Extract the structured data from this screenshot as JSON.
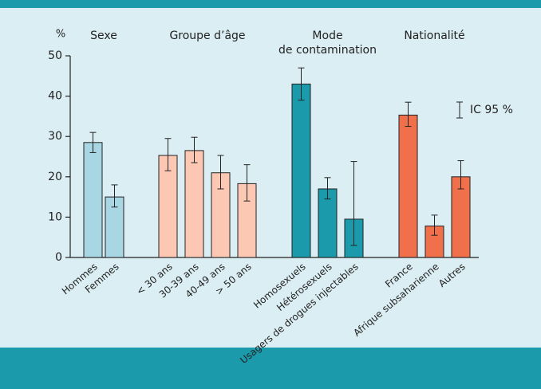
{
  "chart_data": {
    "type": "bar",
    "y_label": "%",
    "ylim": [
      0,
      50
    ],
    "yticks": [
      0,
      10,
      20,
      30,
      40,
      50
    ],
    "legend": "IC 95 %",
    "series": [
      {
        "name": [
          "Sexe"
        ],
        "color": "#a8d7e3",
        "label_color": "#1e9db3",
        "categories": [
          "Hommes",
          "Femmes"
        ],
        "values": [
          28.5,
          15
        ],
        "ci_low": [
          26,
          12.5
        ],
        "ci_high": [
          31,
          18
        ]
      },
      {
        "name": [
          "Groupe d’âge"
        ],
        "color": "#fcc8b3",
        "label_color": "#f0704c",
        "categories": [
          "< 30 ans",
          "30-39 ans",
          "40-49 ans",
          "> 50 ans"
        ],
        "values": [
          25.3,
          26.5,
          21,
          18.3
        ],
        "ci_low": [
          21.5,
          23.5,
          17,
          14
        ],
        "ci_high": [
          29.5,
          29.8,
          25.3,
          23
        ]
      },
      {
        "name": [
          "Mode",
          "de contamination"
        ],
        "color": "#1b9aab",
        "label_color": "#1e9db3",
        "categories": [
          "Homosexuels",
          "Hétérosexuels",
          "Usagers de drogues injectables"
        ],
        "values": [
          43,
          17,
          9.5
        ],
        "ci_low": [
          39,
          14.5,
          3
        ],
        "ci_high": [
          47,
          19.8,
          23.8
        ]
      },
      {
        "name": [
          "Nationalité"
        ],
        "color": "#f0704c",
        "label_color": "#f0704c",
        "categories": [
          "France",
          "Afrique subsaharienne",
          "Autres"
        ],
        "values": [
          35.3,
          7.8,
          20
        ],
        "ci_low": [
          32.5,
          5.5,
          17
        ],
        "ci_high": [
          38.5,
          10.5,
          24
        ]
      }
    ]
  }
}
